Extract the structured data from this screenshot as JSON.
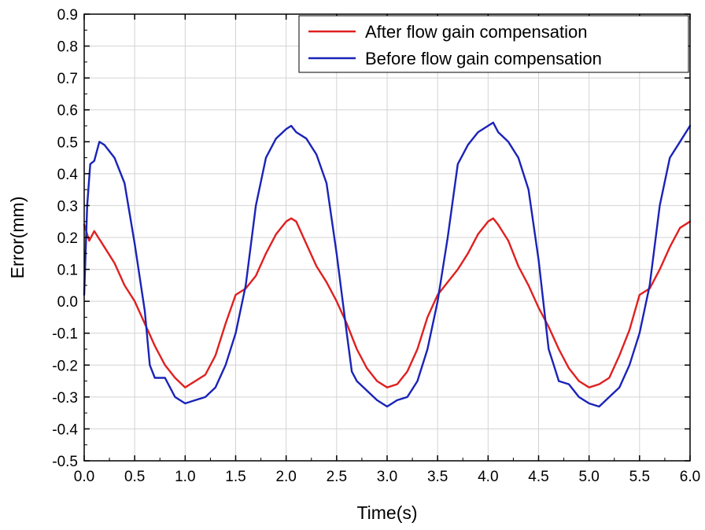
{
  "chart_data": {
    "type": "line",
    "title": "",
    "xlabel": "Time(s)",
    "ylabel": "Error(mm)",
    "xlim": [
      0.0,
      6.0
    ],
    "ylim": [
      -0.5,
      0.9
    ],
    "x_ticks": [
      "0.0",
      "0.5",
      "1.0",
      "1.5",
      "2.0",
      "2.5",
      "3.0",
      "3.5",
      "4.0",
      "4.5",
      "5.0",
      "5.5",
      "6.0"
    ],
    "y_ticks": [
      "-0.5",
      "-0.4",
      "-0.3",
      "-0.2",
      "-0.1",
      "0.0",
      "0.1",
      "0.2",
      "0.3",
      "0.4",
      "0.5",
      "0.6",
      "0.7",
      "0.8",
      "0.9"
    ],
    "grid": true,
    "legend_position": "top-right",
    "series": [
      {
        "name": "After flow gain compensation",
        "color": "#e02020",
        "x": [
          0.0,
          0.05,
          0.1,
          0.2,
          0.3,
          0.4,
          0.5,
          0.6,
          0.7,
          0.8,
          0.9,
          1.0,
          1.1,
          1.2,
          1.3,
          1.4,
          1.5,
          1.6,
          1.7,
          1.8,
          1.9,
          2.0,
          2.05,
          2.1,
          2.2,
          2.3,
          2.4,
          2.5,
          2.6,
          2.7,
          2.8,
          2.9,
          3.0,
          3.1,
          3.2,
          3.3,
          3.4,
          3.5,
          3.6,
          3.7,
          3.8,
          3.9,
          4.0,
          4.05,
          4.1,
          4.2,
          4.3,
          4.4,
          4.5,
          4.6,
          4.7,
          4.8,
          4.9,
          5.0,
          5.1,
          5.2,
          5.3,
          5.4,
          5.5,
          5.6,
          5.7,
          5.8,
          5.9,
          6.0
        ],
        "values": [
          0.24,
          0.19,
          0.22,
          0.17,
          0.12,
          0.05,
          0.0,
          -0.07,
          -0.14,
          -0.2,
          -0.24,
          -0.27,
          -0.25,
          -0.23,
          -0.17,
          -0.07,
          0.02,
          0.04,
          0.08,
          0.15,
          0.21,
          0.25,
          0.26,
          0.25,
          0.18,
          0.11,
          0.06,
          0.0,
          -0.07,
          -0.15,
          -0.21,
          -0.25,
          -0.27,
          -0.26,
          -0.22,
          -0.15,
          -0.05,
          0.02,
          0.06,
          0.1,
          0.15,
          0.21,
          0.25,
          0.26,
          0.24,
          0.19,
          0.11,
          0.05,
          -0.02,
          -0.08,
          -0.15,
          -0.21,
          -0.25,
          -0.27,
          -0.26,
          -0.24,
          -0.17,
          -0.09,
          0.02,
          0.04,
          0.1,
          0.17,
          0.23,
          0.25
        ]
      },
      {
        "name": "Before flow gain compensation",
        "color": "#1a23b8",
        "x": [
          0.0,
          0.03,
          0.06,
          0.1,
          0.15,
          0.2,
          0.3,
          0.4,
          0.5,
          0.6,
          0.65,
          0.7,
          0.8,
          0.9,
          1.0,
          1.1,
          1.2,
          1.3,
          1.4,
          1.5,
          1.6,
          1.7,
          1.8,
          1.9,
          2.0,
          2.05,
          2.1,
          2.2,
          2.3,
          2.4,
          2.5,
          2.6,
          2.65,
          2.7,
          2.8,
          2.9,
          3.0,
          3.1,
          3.2,
          3.3,
          3.4,
          3.5,
          3.6,
          3.7,
          3.8,
          3.9,
          4.0,
          4.05,
          4.1,
          4.2,
          4.3,
          4.4,
          4.5,
          4.6,
          4.65,
          4.7,
          4.8,
          4.9,
          5.0,
          5.1,
          5.2,
          5.3,
          5.4,
          5.5,
          5.6,
          5.7,
          5.8,
          5.9,
          6.0
        ],
        "values": [
          0.02,
          0.3,
          0.43,
          0.44,
          0.5,
          0.49,
          0.45,
          0.37,
          0.18,
          -0.03,
          -0.2,
          -0.24,
          -0.24,
          -0.3,
          -0.32,
          -0.31,
          -0.3,
          -0.27,
          -0.2,
          -0.1,
          0.05,
          0.3,
          0.45,
          0.51,
          0.54,
          0.55,
          0.53,
          0.51,
          0.46,
          0.37,
          0.15,
          -0.1,
          -0.22,
          -0.25,
          -0.28,
          -0.31,
          -0.33,
          -0.31,
          -0.3,
          -0.25,
          -0.15,
          0.0,
          0.2,
          0.43,
          0.49,
          0.53,
          0.55,
          0.56,
          0.53,
          0.5,
          0.45,
          0.35,
          0.13,
          -0.15,
          -0.2,
          -0.25,
          -0.26,
          -0.3,
          -0.32,
          -0.33,
          -0.3,
          -0.27,
          -0.2,
          -0.1,
          0.05,
          0.3,
          0.45,
          0.5,
          0.55
        ]
      }
    ]
  }
}
